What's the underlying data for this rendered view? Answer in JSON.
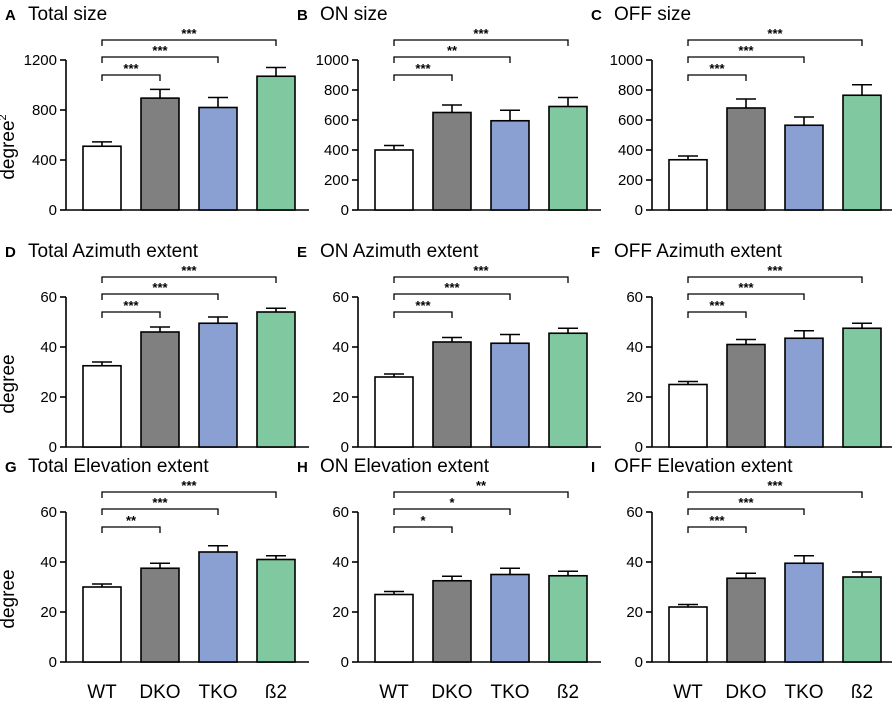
{
  "colors": {
    "WT": "#ffffff",
    "DKO": "#808080",
    "TKO": "#8aa0d2",
    "B2": "#80c9a0"
  },
  "chart_data": [
    {
      "type": "bar",
      "letter": "A",
      "title": "Total size",
      "ylabel": "degree",
      "ylabel_sup": "2",
      "show_xlabels": false,
      "categories": [
        "WT",
        "DKO",
        "TKO",
        "ß2"
      ],
      "values": [
        510,
        895,
        820,
        1070
      ],
      "errors": [
        35,
        70,
        80,
        70
      ],
      "ylim": [
        0,
        1200
      ],
      "yticks": [
        0,
        400,
        800,
        1200
      ],
      "comparisons": [
        {
          "from": 0,
          "to": 1,
          "label": "***"
        },
        {
          "from": 0,
          "to": 2,
          "label": "***"
        },
        {
          "from": 0,
          "to": 3,
          "label": "***"
        }
      ]
    },
    {
      "type": "bar",
      "letter": "B",
      "title": "ON size",
      "ylabel": "",
      "show_xlabels": false,
      "categories": [
        "WT",
        "DKO",
        "TKO",
        "ß2"
      ],
      "values": [
        400,
        650,
        595,
        690
      ],
      "errors": [
        30,
        50,
        70,
        60
      ],
      "ylim": [
        0,
        1000
      ],
      "yticks": [
        0,
        200,
        400,
        600,
        800,
        1000
      ],
      "comparisons": [
        {
          "from": 0,
          "to": 1,
          "label": "***"
        },
        {
          "from": 0,
          "to": 2,
          "label": "**"
        },
        {
          "from": 0,
          "to": 3,
          "label": "***"
        }
      ]
    },
    {
      "type": "bar",
      "letter": "C",
      "title": "OFF size",
      "ylabel": "",
      "show_xlabels": false,
      "categories": [
        "WT",
        "DKO",
        "TKO",
        "ß2"
      ],
      "values": [
        335,
        680,
        565,
        765
      ],
      "errors": [
        25,
        60,
        55,
        70
      ],
      "ylim": [
        0,
        1000
      ],
      "yticks": [
        0,
        200,
        400,
        600,
        800,
        1000
      ],
      "comparisons": [
        {
          "from": 0,
          "to": 1,
          "label": "***"
        },
        {
          "from": 0,
          "to": 2,
          "label": "***"
        },
        {
          "from": 0,
          "to": 3,
          "label": "***"
        }
      ]
    },
    {
      "type": "bar",
      "letter": "D",
      "title": "Total Azimuth extent",
      "ylabel": "degree",
      "show_xlabels": false,
      "categories": [
        "WT",
        "DKO",
        "TKO",
        "ß2"
      ],
      "values": [
        32.5,
        46,
        49.5,
        54
      ],
      "errors": [
        1.5,
        2,
        2.5,
        1.5
      ],
      "ylim": [
        0,
        60
      ],
      "yticks": [
        0,
        20,
        40,
        60
      ],
      "comparisons": [
        {
          "from": 0,
          "to": 1,
          "label": "***"
        },
        {
          "from": 0,
          "to": 2,
          "label": "***"
        },
        {
          "from": 0,
          "to": 3,
          "label": "***"
        }
      ]
    },
    {
      "type": "bar",
      "letter": "E",
      "title": "ON  Azimuth extent",
      "ylabel": "",
      "show_xlabels": false,
      "categories": [
        "WT",
        "DKO",
        "TKO",
        "ß2"
      ],
      "values": [
        28,
        42,
        41.5,
        45.5
      ],
      "errors": [
        1.2,
        1.8,
        3.5,
        2
      ],
      "ylim": [
        0,
        60
      ],
      "yticks": [
        0,
        20,
        40,
        60
      ],
      "comparisons": [
        {
          "from": 0,
          "to": 1,
          "label": "***"
        },
        {
          "from": 0,
          "to": 2,
          "label": "***"
        },
        {
          "from": 0,
          "to": 3,
          "label": "***"
        }
      ]
    },
    {
      "type": "bar",
      "letter": "F",
      "title": "OFF  Azimuth extent",
      "ylabel": "",
      "show_xlabels": false,
      "categories": [
        "WT",
        "DKO",
        "TKO",
        "ß2"
      ],
      "values": [
        25,
        41,
        43.5,
        47.5
      ],
      "errors": [
        1.2,
        2,
        3,
        2
      ],
      "ylim": [
        0,
        60
      ],
      "yticks": [
        0,
        20,
        40,
        60
      ],
      "comparisons": [
        {
          "from": 0,
          "to": 1,
          "label": "***"
        },
        {
          "from": 0,
          "to": 2,
          "label": "***"
        },
        {
          "from": 0,
          "to": 3,
          "label": "***"
        }
      ]
    },
    {
      "type": "bar",
      "letter": "G",
      "title": "Total Elevation extent",
      "ylabel": "degree",
      "show_xlabels": true,
      "categories": [
        "WT",
        "DKO",
        "TKO",
        "ß2"
      ],
      "values": [
        30,
        37.5,
        44,
        41
      ],
      "errors": [
        1.2,
        2,
        2.5,
        1.5
      ],
      "ylim": [
        0,
        60
      ],
      "yticks": [
        0,
        20,
        40,
        60
      ],
      "comparisons": [
        {
          "from": 0,
          "to": 1,
          "label": "**"
        },
        {
          "from": 0,
          "to": 2,
          "label": "***"
        },
        {
          "from": 0,
          "to": 3,
          "label": "***"
        }
      ]
    },
    {
      "type": "bar",
      "letter": "H",
      "title": "ON  Elevation extent",
      "ylabel": "",
      "show_xlabels": true,
      "categories": [
        "WT",
        "DKO",
        "TKO",
        "ß2"
      ],
      "values": [
        27,
        32.5,
        35,
        34.5
      ],
      "errors": [
        1.2,
        1.8,
        2.5,
        1.8
      ],
      "ylim": [
        0,
        60
      ],
      "yticks": [
        0,
        20,
        40,
        60
      ],
      "comparisons": [
        {
          "from": 0,
          "to": 1,
          "label": "*"
        },
        {
          "from": 0,
          "to": 2,
          "label": "*"
        },
        {
          "from": 0,
          "to": 3,
          "label": "**"
        }
      ]
    },
    {
      "type": "bar",
      "letter": "I",
      "title": "OFF  Elevation extent",
      "ylabel": "",
      "show_xlabels": true,
      "categories": [
        "WT",
        "DKO",
        "TKO",
        "ß2"
      ],
      "values": [
        22,
        33.5,
        39.5,
        34
      ],
      "errors": [
        1,
        2,
        3,
        2
      ],
      "ylim": [
        0,
        60
      ],
      "yticks": [
        0,
        20,
        40,
        60
      ],
      "comparisons": [
        {
          "from": 0,
          "to": 1,
          "label": "***"
        },
        {
          "from": 0,
          "to": 2,
          "label": "***"
        },
        {
          "from": 0,
          "to": 3,
          "label": "***"
        }
      ]
    }
  ]
}
